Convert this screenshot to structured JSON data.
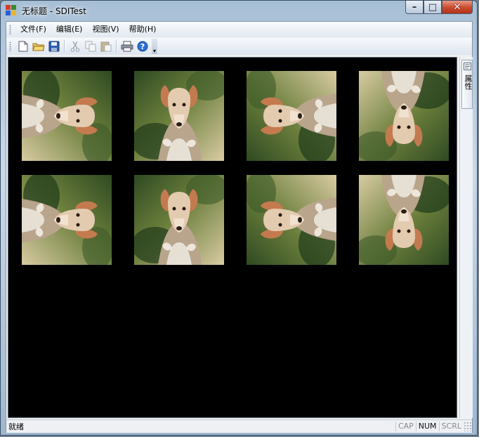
{
  "window": {
    "title": "无标题 - SDITest",
    "minimize_label": "–",
    "maximize_label": "□",
    "close_label": "✕"
  },
  "menu": {
    "items": [
      {
        "label": "文件(F)"
      },
      {
        "label": "编辑(E)"
      },
      {
        "label": "视图(V)"
      },
      {
        "label": "帮助(H)"
      }
    ]
  },
  "toolbar": {
    "buttons": [
      "new-file-icon",
      "open-folder-icon",
      "save-icon",
      "cut-icon",
      "copy-icon",
      "paste-icon",
      "print-icon",
      "help-icon"
    ],
    "more_label": "▾"
  },
  "side_panel": {
    "tab_label": "属性"
  },
  "view": {
    "background": "#000000",
    "tiles": [
      {
        "row": 1,
        "col": 1,
        "orientation": "rotated 90° clockwise"
      },
      {
        "row": 1,
        "col": 2,
        "orientation": "upright"
      },
      {
        "row": 1,
        "col": 3,
        "orientation": "rotated 90° counterclockwise"
      },
      {
        "row": 1,
        "col": 4,
        "orientation": "upside down"
      },
      {
        "row": 2,
        "col": 1,
        "orientation": "rotated 90° clockwise"
      },
      {
        "row": 2,
        "col": 2,
        "orientation": "upright"
      },
      {
        "row": 2,
        "col": 3,
        "orientation": "rotated 90° counterclockwise"
      },
      {
        "row": 2,
        "col": 4,
        "orientation": "upside down"
      }
    ]
  },
  "status": {
    "text": "就绪",
    "indicators": [
      {
        "label": "CAP",
        "active": false
      },
      {
        "label": "NUM",
        "active": true
      },
      {
        "label": "SCRL",
        "active": false
      }
    ]
  },
  "colors": {
    "title_gradient": "#a7bfd6",
    "close_button": "#c94a2d",
    "view_background": "#000000"
  }
}
